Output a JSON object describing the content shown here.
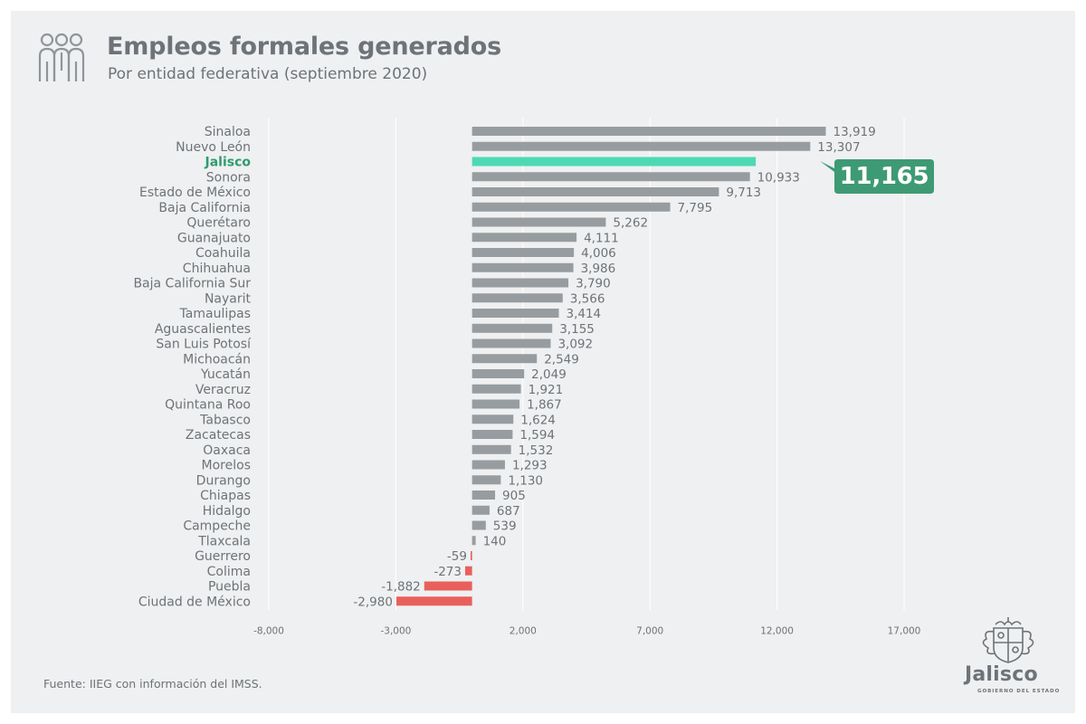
{
  "header": {
    "title": "Empleos formales generados",
    "subtitle": "Por entidad federativa (septiembre 2020)",
    "icon": "people-group-icon"
  },
  "footer": {
    "source": "Fuente: IIEG con información del IMSS.",
    "logo_word": "Jalisco",
    "logo_sub": "GOBIERNO DEL ESTADO",
    "logo_icon": "jalisco-coat-of-arms-icon"
  },
  "colors": {
    "positive": "#979ca0",
    "negative": "#e8605c",
    "highlight": "#4ed9b5",
    "highlight_label": "#2f9b6e",
    "callout_bg": "#3e9a74",
    "text": "#6d7378"
  },
  "chart_data": {
    "type": "bar",
    "orientation": "horizontal",
    "title": "Empleos formales generados",
    "subtitle": "Por entidad federativa (septiembre 2020)",
    "xlabel": "",
    "ylabel": "",
    "xlim": [
      -8000,
      17000
    ],
    "xticks": [
      -8000,
      -3000,
      2000,
      7000,
      12000,
      17000
    ],
    "xtick_labels": [
      "-8,000",
      "-3,000",
      "2,000",
      "7,000",
      "12,000",
      "17,000"
    ],
    "grid": true,
    "legend": "none",
    "highlight": "Jalisco",
    "highlight_label": "11,165",
    "categories": [
      "Sinaloa",
      "Nuevo León",
      "Jalisco",
      "Sonora",
      "Estado de México",
      "Baja California",
      "Querétaro",
      "Guanajuato",
      "Coahuila",
      "Chihuahua",
      "Baja California Sur",
      "Nayarit",
      "Tamaulipas",
      "Aguascalientes",
      "San Luis Potosí",
      "Michoacán",
      "Yucatán",
      "Veracruz",
      "Quintana Roo",
      "Tabasco",
      "Zacatecas",
      "Oaxaca",
      "Morelos",
      "Durango",
      "Chiapas",
      "Hidalgo",
      "Campeche",
      "Tlaxcala",
      "Guerrero",
      "Colima",
      "Puebla",
      "Ciudad de México"
    ],
    "values": [
      13919,
      13307,
      11165,
      10933,
      9713,
      7795,
      5262,
      4111,
      4006,
      3986,
      3790,
      3566,
      3414,
      3155,
      3092,
      2549,
      2049,
      1921,
      1867,
      1624,
      1594,
      1532,
      1293,
      1130,
      905,
      687,
      539,
      140,
      -59,
      -273,
      -1882,
      -2980
    ],
    "value_labels": [
      "13,919",
      "13,307",
      "",
      "10,933",
      "9,713",
      "7,795",
      "5,262",
      "4,111",
      "4,006",
      "3,986",
      "3,790",
      "3,566",
      "3,414",
      "3,155",
      "3,092",
      "2,549",
      "2,049",
      "1,921",
      "1,867",
      "1,624",
      "1,594",
      "1,532",
      "1,293",
      "1,130",
      "905",
      "687",
      "539",
      "140",
      "-59",
      "-273",
      "-1,882",
      "-2,980"
    ]
  }
}
